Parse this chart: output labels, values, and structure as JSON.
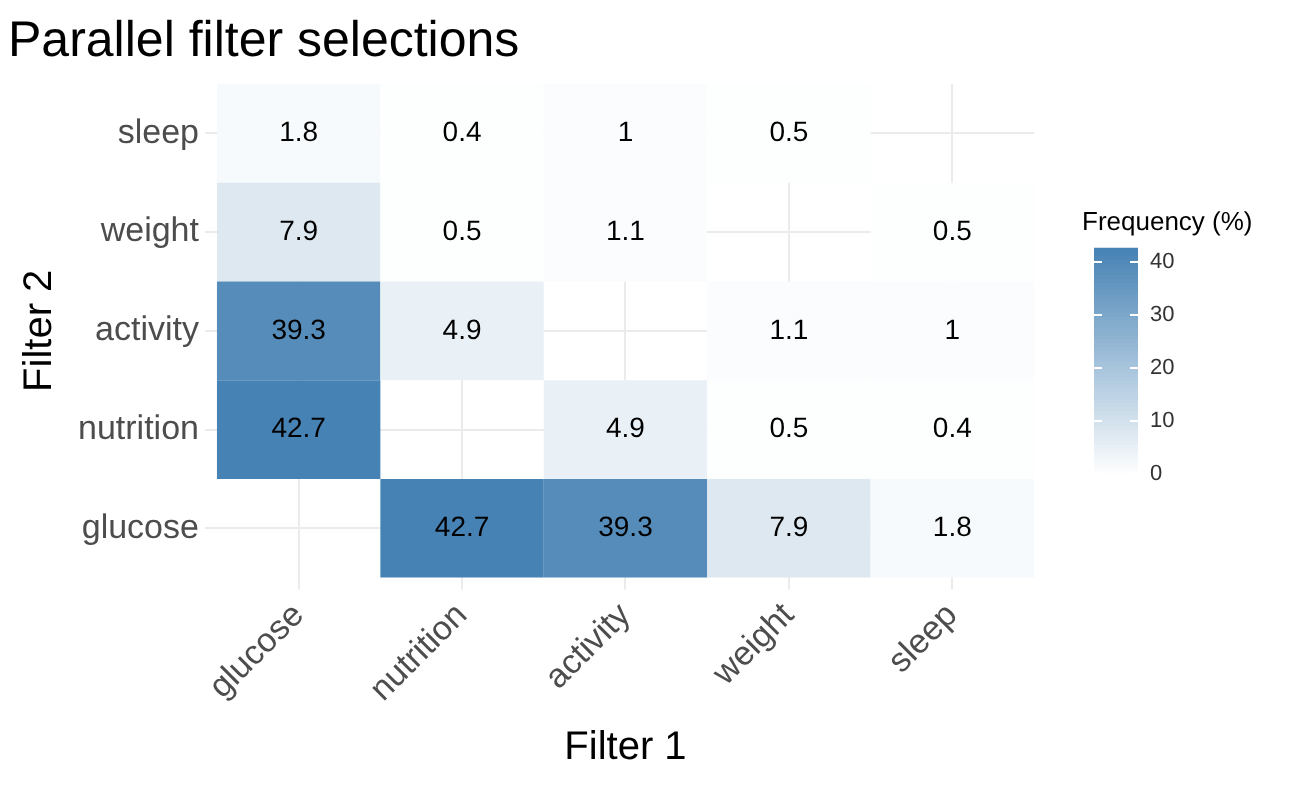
{
  "chart_data": {
    "type": "heatmap",
    "title": "Parallel filter selections",
    "xlabel": "Filter 1",
    "ylabel": "Filter 2",
    "clabel": "Frequency (%)",
    "categories": [
      "glucose",
      "nutrition",
      "activity",
      "weight",
      "sleep"
    ],
    "y_categories": [
      "sleep",
      "weight",
      "activity",
      "nutrition",
      "glucose"
    ],
    "cells": [
      [
        1.8,
        0.4,
        1,
        0.5,
        null
      ],
      [
        7.9,
        0.5,
        1.1,
        null,
        0.5
      ],
      [
        39.3,
        4.9,
        null,
        1.1,
        1
      ],
      [
        42.7,
        null,
        4.9,
        0.5,
        0.4
      ],
      [
        null,
        42.7,
        39.3,
        7.9,
        1.8
      ]
    ],
    "clim": [
      0,
      42.7
    ],
    "cticks": [
      0,
      10,
      20,
      30,
      40
    ],
    "data_labels": true,
    "grid": true
  }
}
